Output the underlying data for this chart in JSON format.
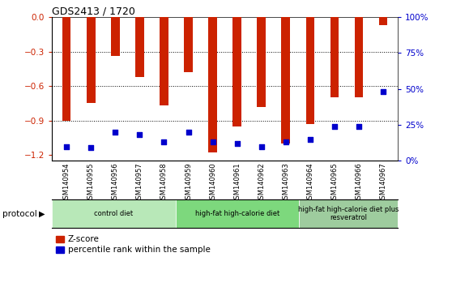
{
  "title": "GDS2413 / 1720",
  "samples": [
    "GSM140954",
    "GSM140955",
    "GSM140956",
    "GSM140957",
    "GSM140958",
    "GSM140959",
    "GSM140960",
    "GSM140961",
    "GSM140962",
    "GSM140963",
    "GSM140964",
    "GSM140965",
    "GSM140966",
    "GSM140967"
  ],
  "zscore": [
    -0.9,
    -0.75,
    -0.34,
    -0.52,
    -0.77,
    -0.48,
    -1.18,
    -0.95,
    -0.78,
    -1.1,
    -0.93,
    -0.7,
    -0.7,
    -0.07
  ],
  "pct_rank": [
    10,
    9,
    20,
    18,
    13,
    20,
    13,
    12,
    10,
    13,
    15,
    24,
    24,
    48
  ],
  "groups": [
    {
      "label": "control diet",
      "start": 0,
      "end": 5,
      "color": "#b8e8b8"
    },
    {
      "label": "high-fat high-calorie diet",
      "start": 5,
      "end": 10,
      "color": "#7dd87d"
    },
    {
      "label": "high-fat high-calorie diet plus\nresveratrol",
      "start": 10,
      "end": 14,
      "color": "#9ecc9e"
    }
  ],
  "ylim_left": [
    -1.25,
    0.0
  ],
  "yticks_left": [
    0.0,
    -0.3,
    -0.6,
    -0.9,
    -1.2
  ],
  "ylim_right": [
    0,
    100
  ],
  "yticks_right": [
    0,
    25,
    50,
    75,
    100
  ],
  "bar_color": "#cc2200",
  "dot_color": "#0000cc",
  "bar_width": 0.35,
  "background_color": "#ffffff",
  "legend_zscore_label": "Z-score",
  "legend_pct_label": "percentile rank within the sample",
  "protocol_label": "protocol",
  "grid_lines": [
    -0.3,
    -0.6,
    -0.9
  ]
}
